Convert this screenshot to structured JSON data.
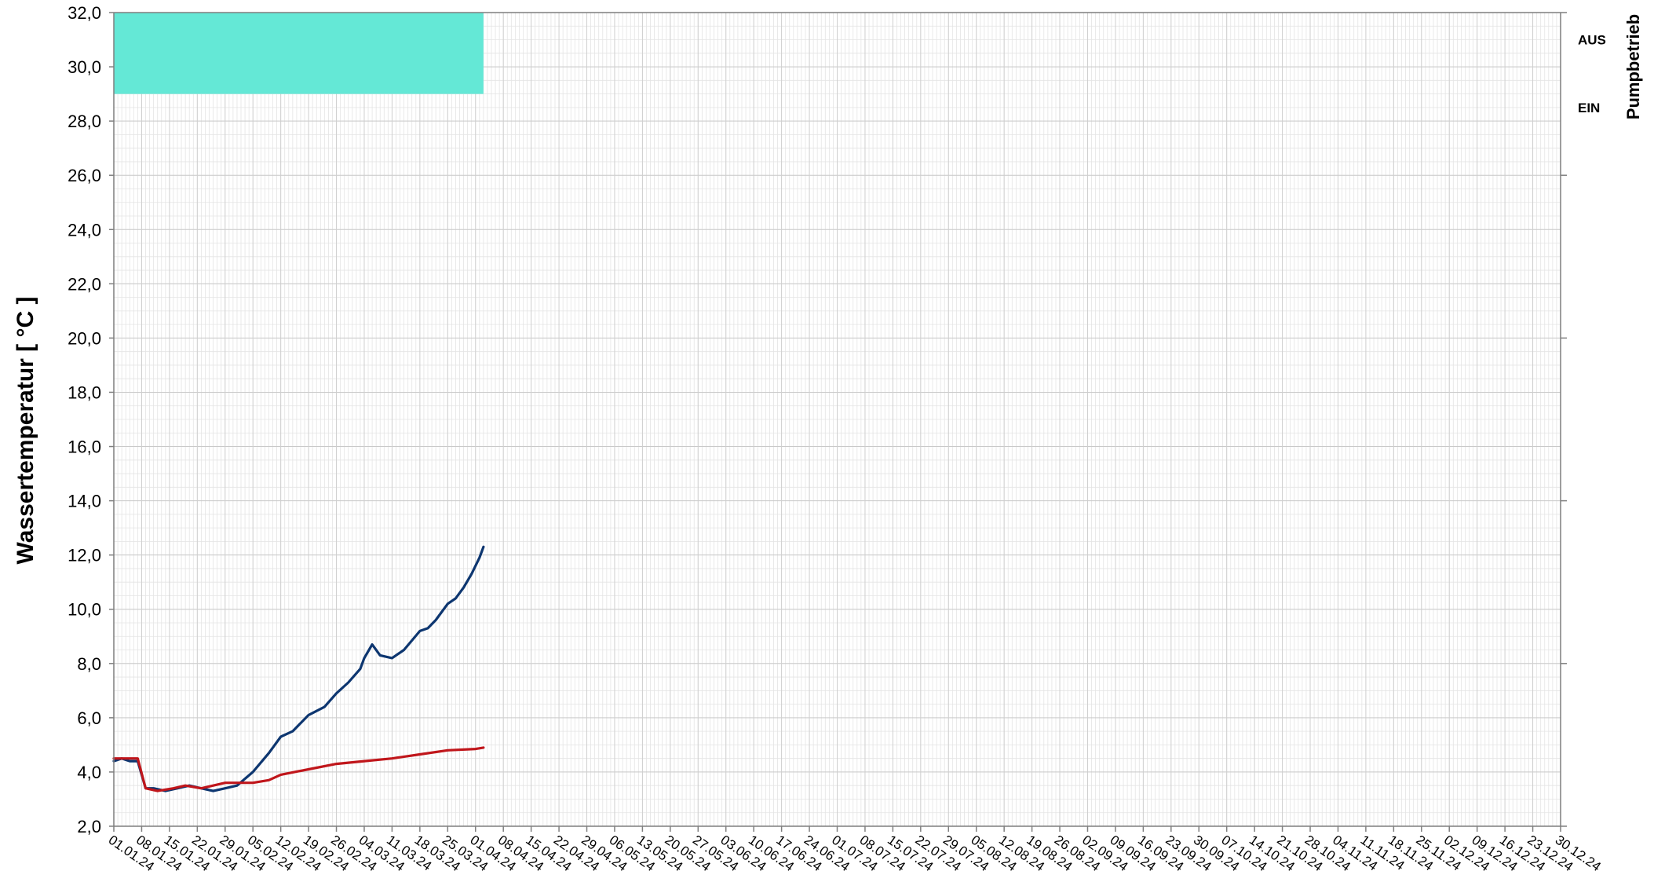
{
  "chart_data": {
    "type": "line",
    "title": "",
    "ylabel": "Wassertemperatur  [ °C ]",
    "y2label": "Pumpbetrieb",
    "ylim": [
      2.0,
      32.0
    ],
    "ystep": 2.0,
    "y_tick_labels": [
      "2,0",
      "4,0",
      "6,0",
      "8,0",
      "10,0",
      "12,0",
      "14,0",
      "16,0",
      "18,0",
      "20,0",
      "22,0",
      "24,0",
      "26,0",
      "28,0",
      "30,0",
      "32,0"
    ],
    "y2_tick_labels": [
      "AUS",
      "EIN"
    ],
    "xlim": [
      "01.01.24",
      "30.12.24"
    ],
    "x_tick_labels": [
      "01.01.24",
      "08.01.24",
      "15.01.24",
      "22.01.24",
      "29.01.24",
      "05.02.24",
      "12.02.24",
      "19.02.24",
      "26.02.24",
      "04.03.24",
      "11.03.24",
      "18.03.24",
      "25.03.24",
      "01.04.24",
      "08.04.24",
      "15.04.24",
      "22.04.24",
      "29.04.24",
      "06.05.24",
      "13.05.24",
      "20.05.24",
      "27.05.24",
      "03.06.24",
      "10.06.24",
      "17.06.24",
      "24.06.24",
      "01.07.24",
      "08.07.24",
      "15.07.24",
      "22.07.24",
      "29.07.24",
      "05.08.24",
      "12.08.24",
      "19.08.24",
      "26.08.24",
      "02.09.24",
      "09.09.24",
      "16.09.24",
      "23.09.24",
      "30.09.24",
      "07.10.24",
      "14.10.24",
      "21.10.24",
      "28.10.24",
      "04.11.24",
      "11.11.24",
      "18.11.24",
      "25.11.24",
      "02.12.24",
      "09.12.24",
      "16.12.24",
      "23.12.24",
      "30.12.24"
    ],
    "grid": true,
    "pump_band": {
      "x_start": "01.01.24",
      "x_end": "03.04.24",
      "y_bottom": 29.0,
      "y_top": 32.0,
      "state": "EIN",
      "color": "#64e8d6"
    },
    "series": [
      {
        "color": "#0d3670",
        "x": [
          "01.01.24",
          "03.01.24",
          "05.01.24",
          "07.01.24",
          "09.01.24",
          "11.01.24",
          "14.01.24",
          "17.01.24",
          "20.01.24",
          "23.01.24",
          "26.01.24",
          "29.01.24",
          "01.02.24",
          "05.02.24",
          "09.02.24",
          "12.02.24",
          "15.02.24",
          "19.02.24",
          "23.02.24",
          "26.02.24",
          "29.02.24",
          "03.03.24",
          "04.03.24",
          "06.03.24",
          "08.03.24",
          "11.03.24",
          "14.03.24",
          "18.03.24",
          "20.03.24",
          "22.03.24",
          "25.03.24",
          "27.03.24",
          "29.03.24",
          "31.03.24",
          "02.04.24",
          "03.04.24"
        ],
        "values": [
          4.4,
          4.5,
          4.4,
          4.4,
          3.4,
          3.4,
          3.3,
          3.4,
          3.5,
          3.4,
          3.3,
          3.4,
          3.5,
          4.0,
          4.7,
          5.3,
          5.5,
          6.1,
          6.4,
          6.9,
          7.3,
          7.8,
          8.2,
          8.7,
          8.3,
          8.2,
          8.5,
          9.2,
          9.3,
          9.6,
          10.2,
          10.4,
          10.8,
          11.3,
          11.9,
          12.3
        ]
      },
      {
        "color": "#c0161b",
        "x": [
          "01.01.24",
          "04.01.24",
          "07.01.24",
          "09.01.24",
          "12.01.24",
          "16.01.24",
          "19.01.24",
          "23.01.24",
          "26.01.24",
          "29.01.24",
          "02.02.24",
          "05.02.24",
          "09.02.24",
          "12.02.24",
          "19.02.24",
          "26.02.24",
          "04.03.24",
          "11.03.24",
          "18.03.24",
          "25.03.24",
          "01.04.24",
          "03.04.24"
        ],
        "values": [
          4.5,
          4.5,
          4.5,
          3.4,
          3.3,
          3.4,
          3.5,
          3.4,
          3.5,
          3.6,
          3.6,
          3.6,
          3.7,
          3.9,
          4.1,
          4.3,
          4.4,
          4.5,
          4.65,
          4.8,
          4.85,
          4.9
        ]
      }
    ]
  }
}
